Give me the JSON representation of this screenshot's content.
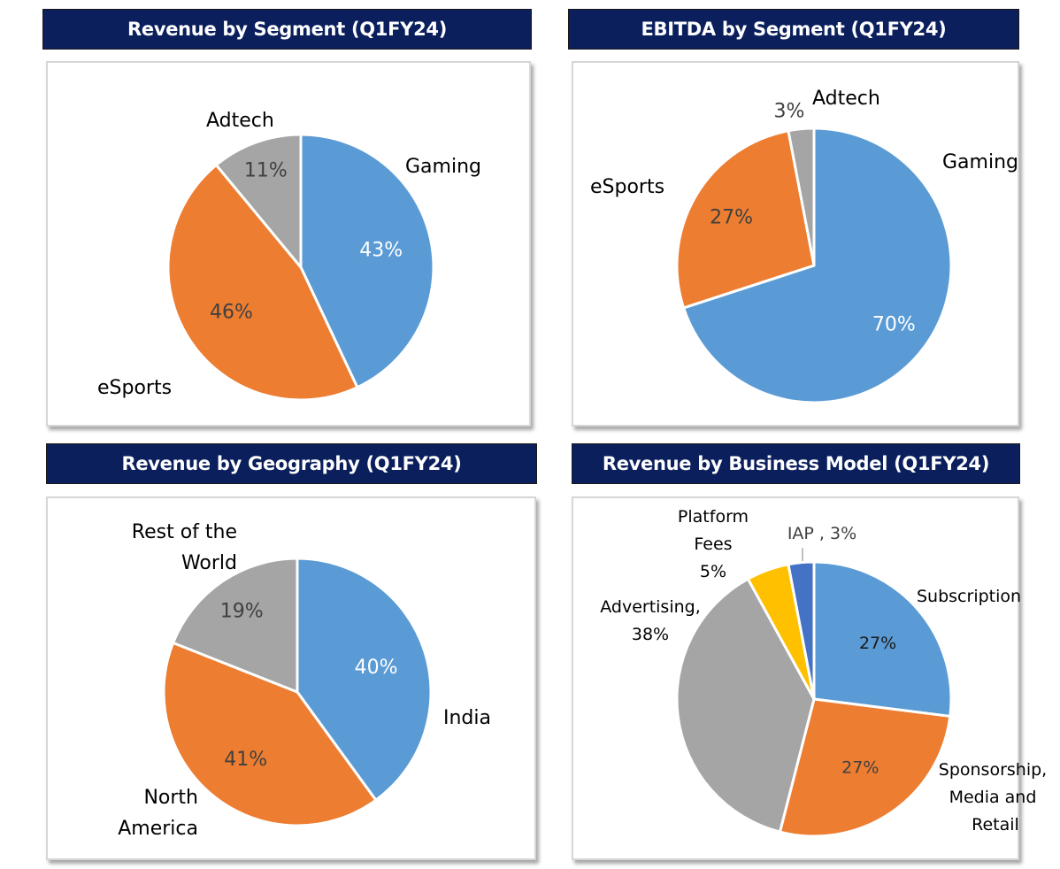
{
  "chart_data": [
    {
      "type": "pie",
      "title": "Revenue by Segment (Q1FY24)",
      "slices": [
        {
          "label": "Gaming",
          "value": 43,
          "value_label": "43%",
          "color": "#5b9bd5",
          "value_color": "#ffffff"
        },
        {
          "label": "eSports",
          "value": 46,
          "value_label": "46%",
          "color": "#ed7d31",
          "value_color": "#404040"
        },
        {
          "label": "Adtech",
          "value": 11,
          "value_label": "11%",
          "color": "#a5a5a5",
          "value_color": "#404040"
        }
      ]
    },
    {
      "type": "pie",
      "title": "EBITDA by Segment (Q1FY24)",
      "slices": [
        {
          "label": "Gaming",
          "value": 70,
          "value_label": "70%",
          "color": "#5b9bd5",
          "value_color": "#ffffff"
        },
        {
          "label": "eSports",
          "value": 27,
          "value_label": "27%",
          "color": "#ed7d31",
          "value_color": "#404040"
        },
        {
          "label": "Adtech",
          "value": 3,
          "value_label": "3%",
          "color": "#a5a5a5",
          "value_color": "#404040"
        }
      ]
    },
    {
      "type": "pie",
      "title": "Revenue by Geography (Q1FY24)",
      "slices": [
        {
          "label": "India",
          "value": 40,
          "value_label": "40%",
          "color": "#5b9bd5",
          "value_color": "#ffffff"
        },
        {
          "label": "North America",
          "value": 41,
          "value_label": "41%",
          "color": "#ed7d31",
          "value_color": "#404040"
        },
        {
          "label": "Rest of the World",
          "value": 19,
          "value_label": "19%",
          "color": "#a5a5a5",
          "value_color": "#404040"
        }
      ]
    },
    {
      "type": "pie",
      "title": "Revenue by Business Model (Q1FY24)",
      "slices": [
        {
          "label": "Subscription",
          "value": 27,
          "value_label": "27%",
          "color": "#5b9bd5",
          "value_color": "#1a1a1a"
        },
        {
          "label": "Sponsorship, Media and Retail",
          "value": 27,
          "value_label": "27%",
          "color": "#ed7d31",
          "value_color": "#404040"
        },
        {
          "label": "Advertising",
          "value": 38,
          "value_label": "38%",
          "color": "#a5a5a5",
          "value_color": "#1a1a1a"
        },
        {
          "label": "Platform Fees",
          "value": 5,
          "value_label": "5%",
          "color": "#ffc000",
          "value_color": "#1a1a1a"
        },
        {
          "label": "IAP",
          "value": 3,
          "value_label": "3%",
          "color": "#4472c4",
          "value_color": "#404040"
        }
      ]
    }
  ],
  "labels": {
    "c1": {
      "gaming": "Gaming",
      "esports": "eSports",
      "adtech": "Adtech"
    },
    "c2": {
      "gaming": "Gaming",
      "esports": "eSports",
      "adtech": "Adtech"
    },
    "c3": {
      "india": "India",
      "na_1": "North",
      "na_2": "America",
      "row_1": "Rest of the",
      "row_2": "World"
    },
    "c4": {
      "subscription": "Subscription",
      "spons_1": "Sponsorship,",
      "spons_2": "Media and",
      "spons_3": "Retail",
      "adv_1": "Advertising,",
      "adv_2": "38%",
      "pf_1": "Platform",
      "pf_2": "Fees",
      "pf_3": "5%",
      "iap": "IAP , 3%"
    }
  }
}
